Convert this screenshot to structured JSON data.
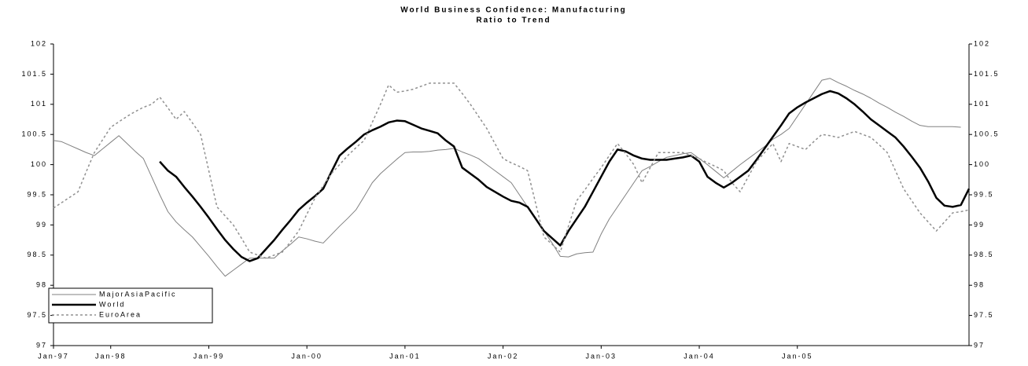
{
  "chart_data": {
    "type": "line",
    "title": "World Business Confidence: Manufacturing",
    "subtitle": "Ratio to Trend",
    "categories": [
      "Jan-97",
      null,
      null,
      null,
      null,
      null,
      null,
      "Jan-98",
      null,
      null,
      null,
      null,
      null,
      null,
      null,
      null,
      null,
      null,
      null,
      "Jan-99",
      null,
      null,
      null,
      null,
      null,
      null,
      null,
      null,
      null,
      null,
      null,
      "Jan-00",
      null,
      null,
      null,
      null,
      null,
      null,
      null,
      null,
      null,
      null,
      null,
      "Jan-01",
      null,
      null,
      null,
      null,
      null,
      null,
      null,
      null,
      null,
      null,
      null,
      "Jan-02",
      null,
      null,
      null,
      null,
      null,
      null,
      null,
      null,
      null,
      null,
      null,
      "Jan-03",
      null,
      null,
      null,
      null,
      null,
      null,
      null,
      null,
      null,
      null,
      null,
      "Jan-04",
      null,
      null,
      null,
      null,
      null,
      null,
      null,
      null,
      null,
      null,
      null,
      "Jan-05",
      null,
      null,
      null,
      null,
      null,
      null,
      null,
      null,
      null,
      null,
      null,
      null,
      null,
      null,
      null,
      null,
      null,
      null,
      null,
      null,
      null
    ],
    "ylim": [
      97,
      102
    ],
    "yticks": [
      97,
      97.5,
      98,
      98.5,
      99,
      99.5,
      100,
      100.5,
      101,
      101.5,
      102
    ],
    "grid": false,
    "legend": "bottom-left",
    "series": [
      {
        "name": "MajorAsiaPacific",
        "color": "#808080",
        "style": "thin",
        "values": [
          100.4,
          100.38,
          100.32,
          100.26,
          100.2,
          100.15,
          100.26,
          100.37,
          100.48,
          100.35,
          100.22,
          100.1,
          99.8,
          99.5,
          99.22,
          99.05,
          98.92,
          98.8,
          98.64,
          98.48,
          98.31,
          98.15,
          98.25,
          98.35,
          98.45,
          98.45,
          98.45,
          98.45,
          98.57,
          98.68,
          98.8,
          98.77,
          98.73,
          98.7,
          98.84,
          98.98,
          99.11,
          99.25,
          99.47,
          99.7,
          99.85,
          99.97,
          100.09,
          100.2,
          100.21,
          100.21,
          100.22,
          100.24,
          100.25,
          100.27,
          100.21,
          100.16,
          100.1,
          100.0,
          99.9,
          99.8,
          99.7,
          99.5,
          99.3,
          99.1,
          98.9,
          98.7,
          98.48,
          98.47,
          98.52,
          98.54,
          98.55,
          98.85,
          99.1,
          99.3,
          99.5,
          99.7,
          99.9,
          99.97,
          100.05,
          100.12,
          100.15,
          100.18,
          100.2,
          100.1,
          100.0,
          99.89,
          99.78,
          99.89,
          100.0,
          100.1,
          100.2,
          100.3,
          100.42,
          100.5,
          100.6,
          100.8,
          101.0,
          101.2,
          101.4,
          101.43,
          101.36,
          101.3,
          101.23,
          101.17,
          101.1,
          101.02,
          100.95,
          100.87,
          100.8,
          100.72,
          100.65,
          100.63,
          100.63,
          100.63,
          100.63,
          100.62,
          null
        ]
      },
      {
        "name": "World",
        "color": "#000000",
        "style": "bold",
        "values": [
          null,
          null,
          null,
          null,
          null,
          null,
          null,
          null,
          null,
          null,
          null,
          null,
          null,
          100.05,
          99.9,
          99.8,
          99.63,
          99.47,
          99.3,
          99.12,
          98.93,
          98.75,
          98.6,
          98.47,
          98.4,
          98.45,
          98.6,
          98.75,
          98.92,
          99.08,
          99.25,
          99.37,
          99.48,
          99.6,
          99.88,
          100.15,
          100.27,
          100.38,
          100.5,
          100.57,
          100.63,
          100.7,
          100.73,
          100.72,
          100.66,
          100.6,
          100.56,
          100.52,
          100.4,
          100.3,
          99.95,
          99.85,
          99.75,
          99.63,
          99.55,
          99.47,
          99.4,
          99.37,
          99.3,
          99.1,
          98.9,
          98.78,
          98.66,
          98.9,
          99.1,
          99.3,
          99.55,
          99.8,
          100.05,
          100.25,
          100.22,
          100.15,
          100.1,
          100.08,
          100.08,
          100.08,
          100.1,
          100.12,
          100.15,
          100.05,
          99.8,
          99.7,
          99.62,
          99.7,
          99.8,
          99.9,
          100.08,
          100.27,
          100.46,
          100.65,
          100.85,
          100.95,
          101.03,
          101.1,
          101.17,
          101.22,
          101.18,
          101.1,
          101.0,
          100.88,
          100.75,
          100.65,
          100.55,
          100.45,
          100.3,
          100.13,
          99.95,
          99.72,
          99.45,
          99.32,
          99.3,
          99.33,
          99.6
        ]
      },
      {
        "name": "EuroArea",
        "color": "#909090",
        "style": "dotted",
        "values": [
          99.28,
          99.37,
          99.46,
          99.55,
          99.88,
          100.2,
          100.41,
          100.62,
          100.71,
          100.8,
          100.88,
          100.95,
          101.0,
          101.12,
          100.94,
          100.75,
          100.88,
          100.69,
          100.5,
          99.9,
          99.3,
          99.15,
          99.0,
          98.78,
          98.55,
          98.5,
          98.45,
          98.5,
          98.55,
          98.72,
          98.9,
          99.18,
          99.45,
          99.65,
          99.85,
          100.0,
          100.15,
          100.28,
          100.4,
          100.7,
          101.0,
          101.32,
          101.2,
          101.22,
          101.25,
          101.3,
          101.35,
          101.35,
          101.35,
          101.35,
          101.18,
          101.0,
          100.8,
          100.6,
          100.35,
          100.1,
          100.03,
          99.97,
          99.9,
          99.35,
          98.8,
          98.68,
          98.55,
          98.98,
          99.4,
          99.58,
          99.77,
          99.95,
          100.15,
          100.35,
          100.18,
          100.0,
          99.7,
          99.95,
          100.2,
          100.2,
          100.2,
          100.2,
          100.15,
          100.1,
          100.03,
          99.97,
          99.9,
          99.7,
          99.55,
          99.8,
          100.05,
          100.2,
          100.35,
          100.05,
          100.35,
          100.3,
          100.25,
          100.38,
          100.5,
          100.48,
          100.45,
          100.5,
          100.55,
          100.5,
          100.45,
          100.33,
          100.2,
          99.9,
          99.6,
          99.4,
          99.2,
          99.05,
          98.9,
          99.05,
          99.2,
          99.22,
          99.25
        ]
      }
    ]
  }
}
